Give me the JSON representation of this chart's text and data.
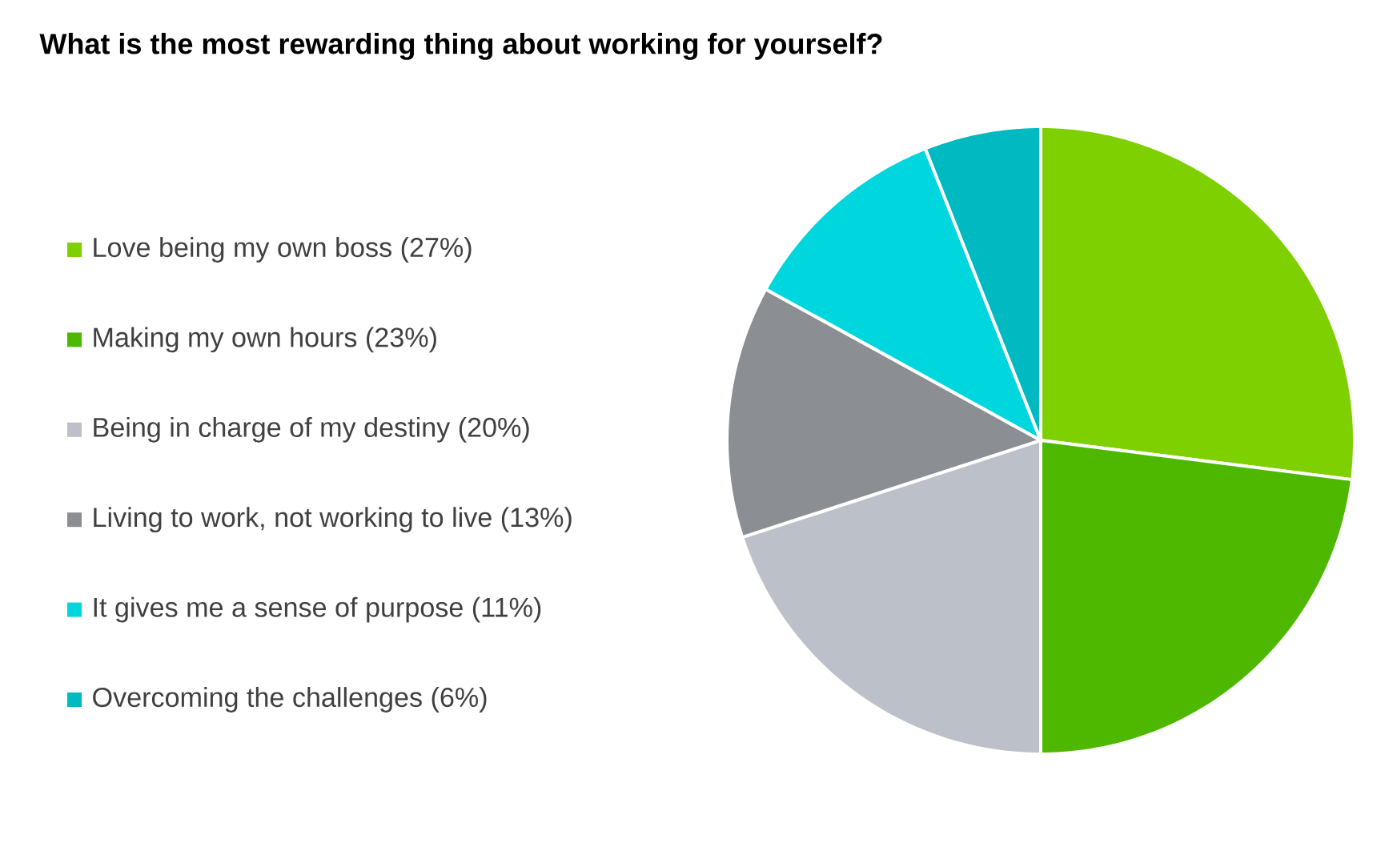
{
  "chart_data": {
    "type": "pie",
    "title": "What is the most rewarding thing about working for yourself?",
    "categories": [
      "Love being my own boss (27%)",
      "Making my own hours (23%)",
      "Being in charge of my destiny (20%)",
      "Living to work, not working to live (13%)",
      "It gives me a sense of purpose (11%)",
      "Overcoming the challenges (6%)"
    ],
    "values": [
      27,
      23,
      20,
      13,
      11,
      6
    ],
    "colors": [
      "#7ed000",
      "#4eb800",
      "#bcc0c8",
      "#8b8e93",
      "#00d6de",
      "#00b9c1"
    ],
    "legend": "left"
  }
}
